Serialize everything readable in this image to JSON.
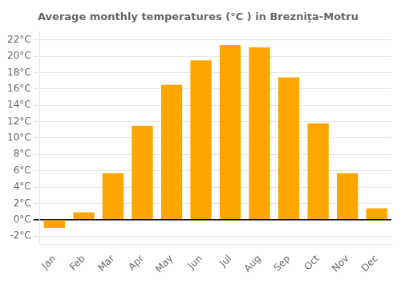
{
  "chart_data": {
    "type": "bar",
    "title": "Average monthly temperatures (°C ) in Brezniţa-Motru",
    "categories": [
      "Jan",
      "Feb",
      "Mar",
      "Apr",
      "May",
      "Jun",
      "Jul",
      "Aug",
      "Sep",
      "Oct",
      "Nov",
      "Dec"
    ],
    "values": [
      -1.0,
      0.9,
      5.7,
      11.5,
      16.5,
      19.5,
      21.4,
      21.1,
      17.4,
      11.8,
      5.7,
      1.4
    ],
    "color": "#FFA500",
    "ylim": [
      -3,
      23
    ],
    "yticks": [
      {
        "value": -2,
        "label": "-2°C"
      },
      {
        "value": 0,
        "label": "0°C"
      },
      {
        "value": 2,
        "label": "2°C"
      },
      {
        "value": 4,
        "label": "4°C"
      },
      {
        "value": 6,
        "label": "6°C"
      },
      {
        "value": 8,
        "label": "8°C"
      },
      {
        "value": 10,
        "label": "10°C"
      },
      {
        "value": 12,
        "label": "12°C"
      },
      {
        "value": 14,
        "label": "14°C"
      },
      {
        "value": 16,
        "label": "16°C"
      },
      {
        "value": 18,
        "label": "18°C"
      },
      {
        "value": 20,
        "label": "20°C"
      },
      {
        "value": 22,
        "label": "22°C"
      }
    ],
    "grid": true
  }
}
